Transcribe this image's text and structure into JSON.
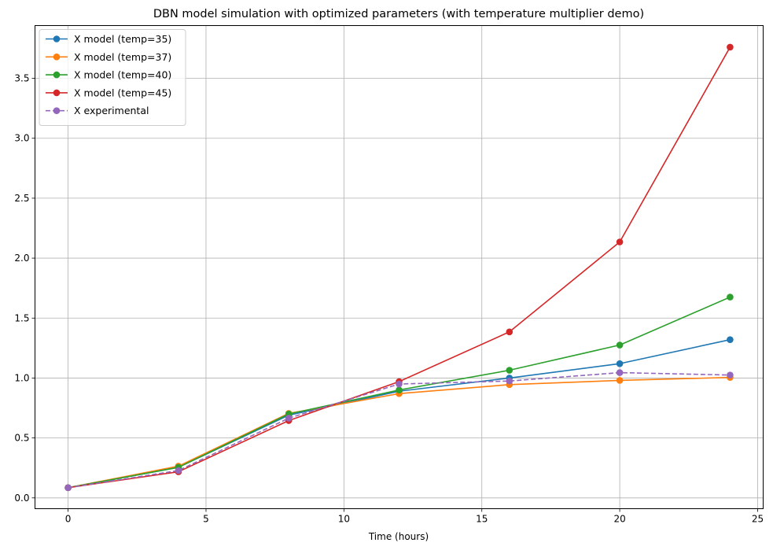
{
  "chart_data": {
    "type": "line",
    "title": "DBN model simulation with optimized parameters (with temperature multiplier demo)",
    "xlabel": "Time (hours)",
    "ylabel": "",
    "xlim": [
      -1.2,
      25.2
    ],
    "ylim": [
      -0.09,
      3.94
    ],
    "x_ticks": [
      0,
      5,
      10,
      15,
      20,
      25
    ],
    "y_ticks": [
      0.0,
      0.5,
      1.0,
      1.5,
      2.0,
      2.5,
      3.0,
      3.5
    ],
    "grid": true,
    "legend_position": "top-left",
    "x": [
      0,
      4,
      8,
      12,
      16,
      20,
      24
    ],
    "series": [
      {
        "name": "X model (temp=35)",
        "color": "#1f77b4",
        "linestyle": "solid",
        "marker": "circle",
        "values": [
          0.085,
          0.255,
          0.69,
          0.89,
          1.0,
          1.12,
          1.32
        ]
      },
      {
        "name": "X model (temp=37)",
        "color": "#ff7f0e",
        "linestyle": "solid",
        "marker": "circle",
        "values": [
          0.085,
          0.265,
          0.705,
          0.87,
          0.945,
          0.98,
          1.005
        ]
      },
      {
        "name": "X model (temp=40)",
        "color": "#2ca02c",
        "linestyle": "solid",
        "marker": "circle",
        "values": [
          0.085,
          0.255,
          0.7,
          0.9,
          1.065,
          1.275,
          1.675
        ]
      },
      {
        "name": "X model (temp=45)",
        "color": "#d62728",
        "linestyle": "solid",
        "marker": "circle",
        "values": [
          0.085,
          0.218,
          0.645,
          0.97,
          1.385,
          2.135,
          3.76
        ]
      },
      {
        "name": "X experimental",
        "color": "#9467bd",
        "linestyle": "dashed",
        "marker": "circle",
        "values": [
          0.085,
          0.228,
          0.665,
          0.95,
          0.975,
          1.045,
          1.025
        ]
      }
    ]
  }
}
